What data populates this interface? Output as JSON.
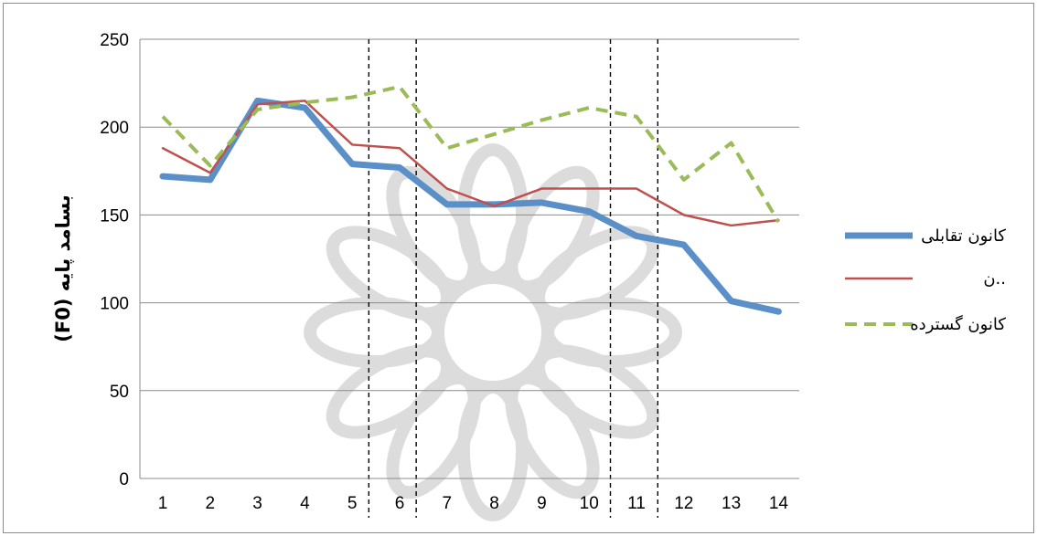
{
  "chart_data": {
    "type": "line",
    "ylabel": "بسامد پایه (F0)",
    "xlabel": "",
    "title": "",
    "ylim": [
      0,
      250
    ],
    "ytick_step": 50,
    "grid": "horizontal",
    "legend_position": "right",
    "x": [
      1,
      2,
      3,
      4,
      5,
      6,
      7,
      8,
      9,
      10,
      11,
      12,
      13,
      14
    ],
    "dashed_vlines": [
      5.35,
      6.35,
      10.45,
      11.45
    ],
    "series": [
      {
        "name": "کانون تقابلی",
        "color": "#5b8fc7",
        "style": "solid-thick",
        "values": [
          172,
          170,
          215,
          211,
          179,
          177,
          156,
          156,
          157,
          152,
          138,
          133,
          101,
          95
        ]
      },
      {
        "name": "..ن",
        "color": "#c0504d",
        "style": "solid-thin",
        "values": [
          188,
          174,
          213,
          215,
          190,
          188,
          165,
          155,
          165,
          165,
          165,
          150,
          144,
          147
        ]
      },
      {
        "name": "کانون گسترده",
        "color": "#9bbb59",
        "style": "dashed",
        "values": [
          206,
          178,
          210,
          214,
          217,
          223,
          188,
          196,
          204,
          211,
          206,
          170,
          191,
          146
        ]
      }
    ]
  }
}
